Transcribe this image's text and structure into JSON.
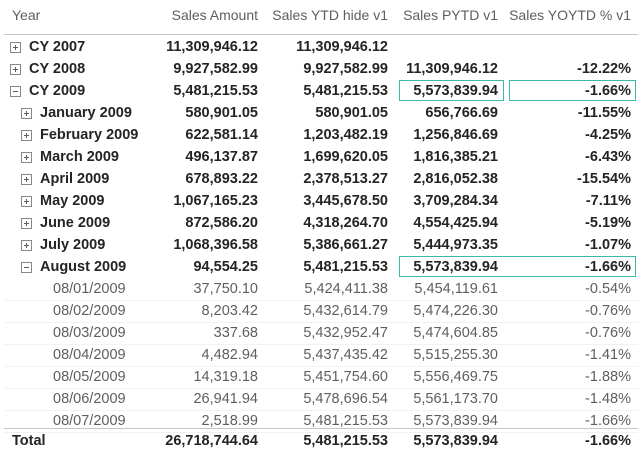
{
  "headers": {
    "year": "Year",
    "sales_amount": "Sales Amount",
    "sales_ytd": "Sales YTD hide v1",
    "sales_pytd": "Sales PYTD v1",
    "sales_yoytd": "Sales YOYTD % v1"
  },
  "rows": [
    {
      "label": "CY 2007",
      "sales": "11,309,946.12",
      "ytd": "11,309,946.12",
      "pytd": "",
      "yoy": ""
    },
    {
      "label": "CY 2008",
      "sales": "9,927,582.99",
      "ytd": "9,927,582.99",
      "pytd": "11,309,946.12",
      "yoy": "-12.22%"
    },
    {
      "label": "CY 2009",
      "sales": "5,481,215.53",
      "ytd": "5,481,215.53",
      "pytd": "5,573,839.94",
      "yoy": "-1.66%"
    },
    {
      "label": "January 2009",
      "sales": "580,901.05",
      "ytd": "580,901.05",
      "pytd": "656,766.69",
      "yoy": "-11.55%"
    },
    {
      "label": "February 2009",
      "sales": "622,581.14",
      "ytd": "1,203,482.19",
      "pytd": "1,256,846.69",
      "yoy": "-4.25%"
    },
    {
      "label": "March 2009",
      "sales": "496,137.87",
      "ytd": "1,699,620.05",
      "pytd": "1,816,385.21",
      "yoy": "-6.43%"
    },
    {
      "label": "April 2009",
      "sales": "678,893.22",
      "ytd": "2,378,513.27",
      "pytd": "2,816,052.38",
      "yoy": "-15.54%"
    },
    {
      "label": "May 2009",
      "sales": "1,067,165.23",
      "ytd": "3,445,678.50",
      "pytd": "3,709,284.34",
      "yoy": "-7.11%"
    },
    {
      "label": "June 2009",
      "sales": "872,586.20",
      "ytd": "4,318,264.70",
      "pytd": "4,554,425.94",
      "yoy": "-5.19%"
    },
    {
      "label": "July 2009",
      "sales": "1,068,396.58",
      "ytd": "5,386,661.27",
      "pytd": "5,444,973.35",
      "yoy": "-1.07%"
    },
    {
      "label": "August 2009",
      "sales": "94,554.25",
      "ytd": "5,481,215.53",
      "pytd": "5,573,839.94",
      "yoy": "-1.66%"
    },
    {
      "label": "08/01/2009",
      "sales": "37,750.10",
      "ytd": "5,424,411.38",
      "pytd": "5,454,119.61",
      "yoy": "-0.54%"
    },
    {
      "label": "08/02/2009",
      "sales": "8,203.42",
      "ytd": "5,432,614.79",
      "pytd": "5,474,226.30",
      "yoy": "-0.76%"
    },
    {
      "label": "08/03/2009",
      "sales": "337.68",
      "ytd": "5,432,952.47",
      "pytd": "5,474,604.85",
      "yoy": "-0.76%"
    },
    {
      "label": "08/04/2009",
      "sales": "4,482.94",
      "ytd": "5,437,435.42",
      "pytd": "5,515,255.30",
      "yoy": "-1.41%"
    },
    {
      "label": "08/05/2009",
      "sales": "14,319.18",
      "ytd": "5,451,754.60",
      "pytd": "5,556,469.75",
      "yoy": "-1.88%"
    },
    {
      "label": "08/06/2009",
      "sales": "26,941.94",
      "ytd": "5,478,696.54",
      "pytd": "5,561,173.70",
      "yoy": "-1.48%"
    },
    {
      "label": "08/07/2009",
      "sales": "2,518.99",
      "ytd": "5,481,215.53",
      "pytd": "5,573,839.94",
      "yoy": "-1.66%"
    }
  ],
  "total": {
    "label": "Total",
    "sales": "26,718,744.64",
    "ytd": "5,481,215.53",
    "pytd": "5,573,839.94",
    "yoy": "-1.66%"
  },
  "colors": {
    "highlight_border": "#3fb8a4",
    "header_text": "#605e5c",
    "grid_line": "#c8c6c4"
  }
}
